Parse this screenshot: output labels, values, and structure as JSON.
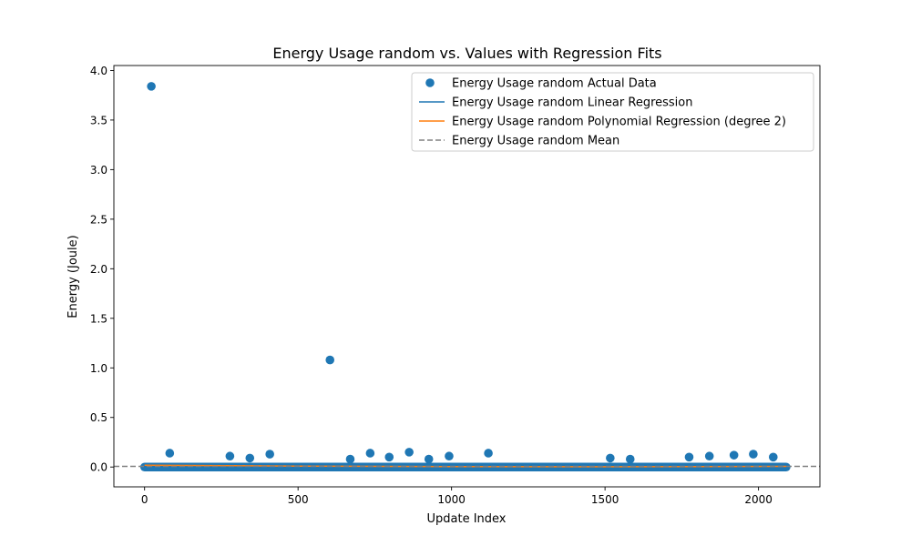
{
  "chart_data": {
    "type": "scatter",
    "title": "Energy Usage random vs. Values with Regression Fits",
    "xlabel": "Update Index",
    "ylabel": "Energy (Joule)",
    "xlim": [
      -100,
      2200
    ],
    "ylim": [
      -0.2,
      4.05
    ],
    "xticks": [
      0,
      500,
      1000,
      1500,
      2000
    ],
    "xtick_labels": [
      "0",
      "500",
      "1000",
      "1500",
      "2000"
    ],
    "yticks": [
      0.0,
      0.5,
      1.0,
      1.5,
      2.0,
      2.5,
      3.0,
      3.5,
      4.0
    ],
    "ytick_labels": [
      "0.0",
      "0.5",
      "1.0",
      "1.5",
      "2.0",
      "2.5",
      "3.0",
      "3.5",
      "4.0"
    ],
    "grid": false,
    "legend_position": "top-right",
    "baseline": {
      "x_range": [
        0,
        2090
      ],
      "y": 0.0,
      "note": "dense cluster of points near zero across all update indices"
    },
    "series": [
      {
        "name": "Energy Usage random Actual Data",
        "kind": "scatter",
        "color": "#1f77b4",
        "points": [
          [
            22,
            3.84
          ],
          [
            82,
            0.14
          ],
          [
            278,
            0.11
          ],
          [
            343,
            0.09
          ],
          [
            408,
            0.13
          ],
          [
            604,
            1.08
          ],
          [
            670,
            0.08
          ],
          [
            735,
            0.14
          ],
          [
            797,
            0.1
          ],
          [
            862,
            0.15
          ],
          [
            926,
            0.08
          ],
          [
            992,
            0.11
          ],
          [
            1120,
            0.14
          ],
          [
            1517,
            0.09
          ],
          [
            1582,
            0.08
          ],
          [
            1774,
            0.1
          ],
          [
            1840,
            0.11
          ],
          [
            1920,
            0.12
          ],
          [
            1983,
            0.13
          ],
          [
            2048,
            0.1
          ]
        ]
      },
      {
        "name": "Energy Usage random Linear Regression",
        "kind": "line",
        "color": "#1f77b4",
        "points": [
          [
            0,
            0.012
          ],
          [
            2090,
            0.002
          ]
        ]
      },
      {
        "name": "Energy Usage random Polynomial Regression (degree 2)",
        "kind": "line",
        "color": "#ff7f0e",
        "points": [
          [
            0,
            0.018
          ],
          [
            500,
            0.009
          ],
          [
            1000,
            0.004
          ],
          [
            1500,
            0.003
          ],
          [
            2090,
            0.006
          ]
        ]
      },
      {
        "name": "Energy Usage random Mean",
        "kind": "hline",
        "color": "#808080",
        "dashed": true,
        "y": 0.006
      }
    ]
  }
}
